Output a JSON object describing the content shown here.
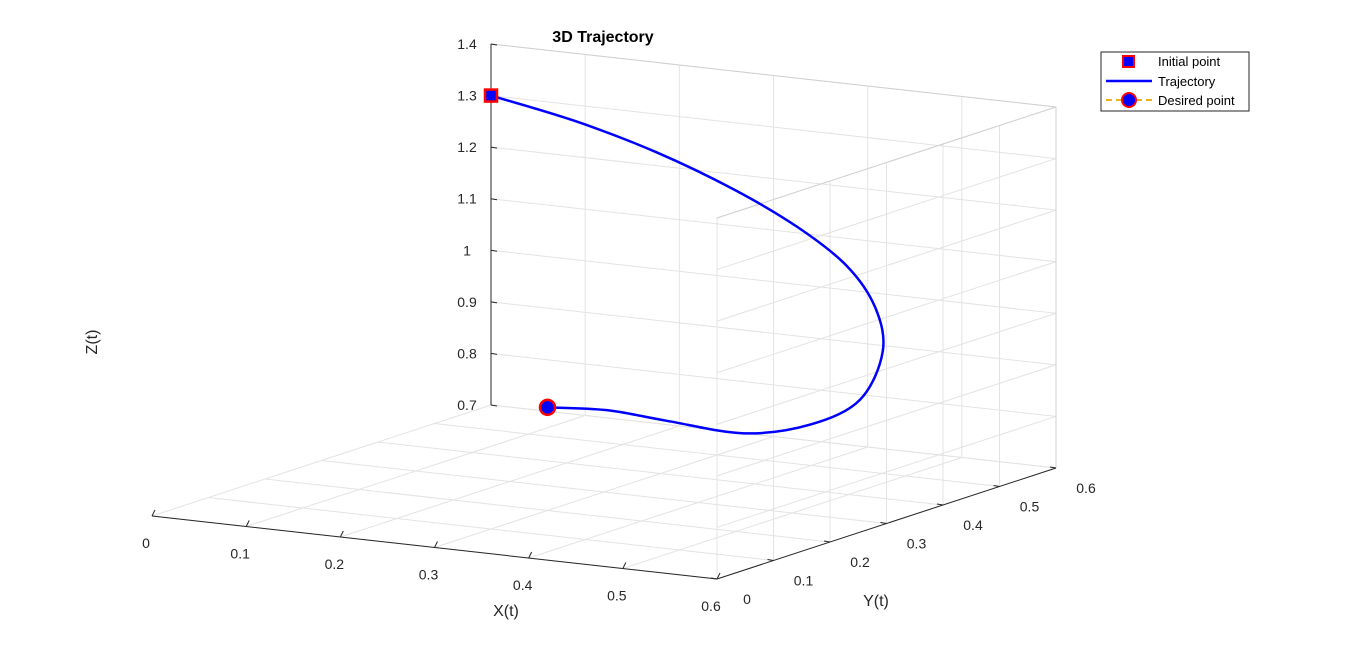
{
  "chart_data": {
    "type": "line",
    "projection": "3d",
    "title": "3D Trajectory",
    "xlabel": "X(t)",
    "ylabel": "Y(t)",
    "zlabel": "Z(t)",
    "xlim": [
      0,
      0.6
    ],
    "ylim": [
      0,
      0.6
    ],
    "zlim": [
      0.7,
      1.4
    ],
    "grid": true,
    "box": true,
    "legend_position": "top-right",
    "x_ticks": [
      "0",
      "0.1",
      "0.2",
      "0.3",
      "0.4",
      "0.5",
      "0.6"
    ],
    "y_ticks": [
      "0",
      "0.1",
      "0.2",
      "0.3",
      "0.4",
      "0.5",
      "0.6"
    ],
    "z_ticks": [
      "0.7",
      "0.8",
      "0.9",
      "1",
      "1.1",
      "1.2",
      "1.3",
      "1.4"
    ],
    "series": [
      {
        "name": "Initial point",
        "kind": "marker",
        "marker": "square",
        "face_color": "#0000ff",
        "edge_color": "#ff0000",
        "x": [
          0.0
        ],
        "y": [
          0.6
        ],
        "z": [
          1.3
        ]
      },
      {
        "name": "Trajectory",
        "kind": "line",
        "color": "#0000ff",
        "x": [
          0.0,
          0.09,
          0.18,
          0.27,
          0.35,
          0.42,
          0.48,
          0.53,
          0.56,
          0.55,
          0.5,
          0.42,
          0.36,
          0.3
        ],
        "y": [
          0.6,
          0.598,
          0.592,
          0.58,
          0.56,
          0.53,
          0.48,
          0.41,
          0.32,
          0.25,
          0.215,
          0.21,
          0.205,
          0.2
        ],
        "z": [
          1.3,
          1.27,
          1.23,
          1.18,
          1.13,
          1.08,
          1.03,
          0.98,
          0.925,
          0.9,
          0.885,
          0.895,
          0.905,
          0.9
        ]
      },
      {
        "name": "Desired point",
        "kind": "marker",
        "marker": "circle",
        "face_color": "#0000ff",
        "edge_color": "#ff0000",
        "legend_line_color": "#edb120",
        "x": [
          0.3
        ],
        "y": [
          0.2
        ],
        "z": [
          0.9
        ]
      }
    ]
  }
}
